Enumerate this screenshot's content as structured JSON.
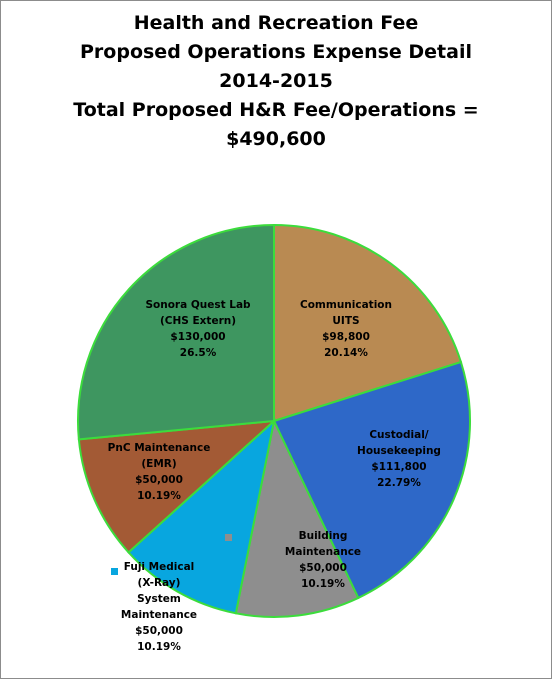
{
  "title_lines": [
    "Health and Recreation Fee",
    "Proposed Operations Expense Detail",
    "2014-2015",
    "Total Proposed H&R Fee/Operations =",
    "$490,600"
  ],
  "chart_data": {
    "type": "pie",
    "title": "Health and Recreation Fee Proposed Operations Expense Detail 2014-2015 Total Proposed H&R Fee/Operations = $490,600",
    "total": 490600,
    "slices": [
      {
        "label_lines": [
          "Communication",
          "UITS"
        ],
        "value": 98800,
        "value_label": "$98,800",
        "percent_label": "20.14%",
        "color": "#b98a52"
      },
      {
        "label_lines": [
          "Custodial/",
          "Housekeeping"
        ],
        "value": 111800,
        "value_label": "$111,800",
        "percent_label": "22.79%",
        "color": "#2e68c8"
      },
      {
        "label_lines": [
          "Building",
          "Maintenance"
        ],
        "value": 50000,
        "value_label": "$50,000",
        "percent_label": "10.19%",
        "color": "#8e8e8e"
      },
      {
        "label_lines": [
          "Fuji Medical",
          "(X-Ray)",
          "System",
          "Maintenance"
        ],
        "value": 50000,
        "value_label": "$50,000",
        "percent_label": "10.19%",
        "color": "#08a6df"
      },
      {
        "label_lines": [
          "PnC Maintenance",
          "(EMR)"
        ],
        "value": 50000,
        "value_label": "$50,000",
        "percent_label": "10.19%",
        "color": "#a35a35"
      },
      {
        "label_lines": [
          "Sonora Quest Lab",
          "(CHS Extern)"
        ],
        "value": 130000,
        "value_label": "$130,000",
        "percent_label": "26.5%",
        "color": "#3e9660"
      }
    ],
    "slice_border_color": "#3cdc3c",
    "legend": "none"
  }
}
